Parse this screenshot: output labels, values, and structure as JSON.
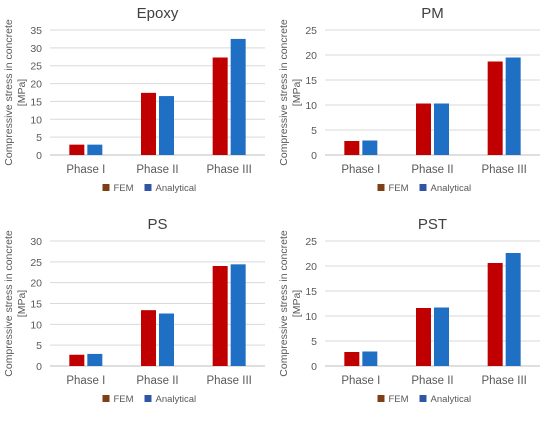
{
  "colors": {
    "fem": "#c00000",
    "analytical": "#1f6fc5",
    "fem_legend": "#7f3f16",
    "analytical_legend": "#2f55a4",
    "axis_text": "#595959",
    "grid": "#d9d9d9"
  },
  "chart_data": [
    {
      "type": "bar",
      "title": "Epoxy",
      "ylabel": "Compressive stress in concrete [MPa]",
      "xlabel": "",
      "categories": [
        "Phase I",
        "Phase II",
        "Phase III"
      ],
      "ylim": [
        0,
        35
      ],
      "yticks": [
        "0",
        "5",
        "10",
        "15",
        "20",
        "25",
        "30",
        "35"
      ],
      "grid": true,
      "legend": "bottom",
      "series": [
        {
          "name": "FEM",
          "values": [
            2.9,
            17.4,
            27.3
          ]
        },
        {
          "name": "Analytical",
          "values": [
            2.9,
            16.5,
            32.5
          ]
        }
      ]
    },
    {
      "type": "bar",
      "title": "PM",
      "ylabel": "Compressive stress in concrete [MPa]",
      "xlabel": "",
      "categories": [
        "Phase I",
        "Phase II",
        "Phase III"
      ],
      "ylim": [
        0,
        25
      ],
      "yticks": [
        "0",
        "5",
        "10",
        "15",
        "20",
        "25"
      ],
      "grid": true,
      "legend": "bottom",
      "series": [
        {
          "name": "FEM",
          "values": [
            2.8,
            10.3,
            18.7
          ]
        },
        {
          "name": "Analytical",
          "values": [
            2.9,
            10.3,
            19.5
          ]
        }
      ]
    },
    {
      "type": "bar",
      "title": "PS",
      "ylabel": "Compressive stress in concrete [MPa]",
      "xlabel": "",
      "categories": [
        "Phase I",
        "Phase II",
        "Phase III"
      ],
      "ylim": [
        0,
        30
      ],
      "yticks": [
        "0",
        "5",
        "10",
        "15",
        "20",
        "25",
        "30"
      ],
      "grid": true,
      "legend": "bottom",
      "series": [
        {
          "name": "FEM",
          "values": [
            2.7,
            13.4,
            24.0
          ]
        },
        {
          "name": "Analytical",
          "values": [
            2.9,
            12.6,
            24.4
          ]
        }
      ]
    },
    {
      "type": "bar",
      "title": "PST",
      "ylabel": "Compressive stress in concrete [MPa]",
      "xlabel": "",
      "categories": [
        "Phase I",
        "Phase II",
        "Phase III"
      ],
      "ylim": [
        0,
        25
      ],
      "yticks": [
        "0",
        "5",
        "10",
        "15",
        "20",
        "25"
      ],
      "grid": true,
      "legend": "bottom",
      "series": [
        {
          "name": "FEM",
          "values": [
            2.8,
            11.6,
            20.6
          ]
        },
        {
          "name": "Analytical",
          "values": [
            2.9,
            11.7,
            22.6
          ]
        }
      ]
    }
  ]
}
